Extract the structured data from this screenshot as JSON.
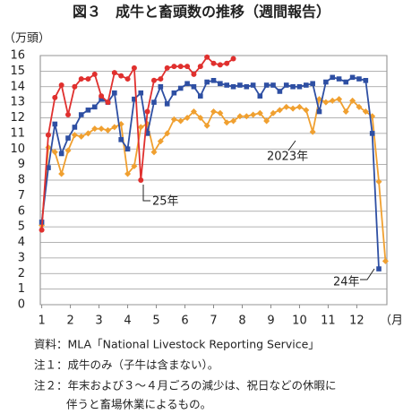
{
  "chart_data": {
    "type": "line",
    "title": "図３　成牛と畜頭数の推移（週間報告）",
    "y_label": "（万頭）",
    "x_label": "（月）",
    "xlim": [
      0.95,
      13.05
    ],
    "xticks": [
      1,
      2,
      3,
      4,
      5,
      6,
      7,
      8,
      9,
      10,
      11,
      12
    ],
    "ylim": [
      0,
      16
    ],
    "yticks": [
      0,
      1,
      2,
      3,
      4,
      5,
      6,
      7,
      8,
      9,
      10,
      11,
      12,
      13,
      14,
      15,
      16
    ],
    "grid": true,
    "x": [
      1.0,
      1.23,
      1.46,
      1.69,
      1.92,
      2.15,
      2.38,
      2.62,
      2.85,
      3.08,
      3.31,
      3.54,
      3.77,
      4.0,
      4.23,
      4.46,
      4.69,
      4.92,
      5.15,
      5.38,
      5.62,
      5.85,
      6.08,
      6.31,
      6.54,
      6.77,
      7.0,
      7.23,
      7.46,
      7.69,
      7.92,
      8.15,
      8.38,
      8.62,
      8.85,
      9.08,
      9.31,
      9.54,
      9.77,
      10.0,
      10.23,
      10.46,
      10.69,
      10.92,
      11.15,
      11.38,
      11.62,
      11.85,
      12.08,
      12.31,
      12.54,
      12.77,
      13.0
    ],
    "series": [
      {
        "name": "2023年",
        "color": "#f0a030",
        "marker": "diamond",
        "values": [
          5.1,
          10.1,
          9.8,
          8.4,
          9.9,
          10.9,
          10.8,
          11.0,
          11.3,
          11.3,
          11.2,
          11.4,
          11.6,
          8.4,
          8.9,
          11.4,
          11.6,
          9.8,
          10.5,
          11.0,
          11.9,
          11.8,
          12.0,
          12.4,
          12.0,
          11.5,
          12.4,
          12.3,
          11.7,
          11.8,
          12.1,
          12.1,
          12.2,
          12.3,
          11.8,
          12.3,
          12.5,
          12.7,
          12.6,
          12.7,
          12.5,
          11.1,
          13.2,
          13.0,
          13.1,
          13.2,
          12.4,
          13.1,
          12.7,
          12.4,
          12.1,
          7.9,
          2.8
        ]
      },
      {
        "name": "24年",
        "color": "#2e4fa3",
        "marker": "square",
        "values": [
          5.3,
          8.8,
          11.6,
          9.7,
          10.7,
          11.4,
          12.2,
          12.5,
          12.7,
          13.2,
          13.0,
          13.6,
          10.6,
          10.0,
          13.2,
          13.6,
          11.0,
          13.0,
          14.0,
          12.9,
          13.6,
          13.9,
          14.2,
          14.0,
          13.4,
          14.3,
          14.4,
          14.2,
          14.1,
          14.0,
          14.1,
          14.0,
          14.1,
          13.4,
          14.1,
          14.1,
          13.7,
          14.1,
          14.0,
          14.0,
          14.1,
          14.2,
          12.4,
          14.3,
          14.6,
          14.5,
          14.3,
          14.6,
          14.5,
          14.4,
          11.0,
          2.3,
          null
        ]
      },
      {
        "name": "25年",
        "color": "#e0302e",
        "marker": "circle",
        "values": [
          4.8,
          10.9,
          13.3,
          14.1,
          12.2,
          14.0,
          14.5,
          14.5,
          14.8,
          13.4,
          13.0,
          14.9,
          14.7,
          14.5,
          15.2,
          8.0,
          12.4,
          14.4,
          14.5,
          15.2,
          15.3,
          15.3,
          15.3,
          14.8,
          15.3,
          15.9,
          15.5,
          15.4,
          15.5,
          15.8,
          null,
          null,
          null,
          null,
          null,
          null,
          null,
          null,
          null,
          null,
          null,
          null,
          null,
          null,
          null,
          null,
          null,
          null,
          null,
          null,
          null,
          null,
          null
        ]
      }
    ],
    "notes": [
      "資料：MLA「National Livestock Reporting Service」",
      "注１：成牛のみ（子牛は含まない）。",
      "注２：年末および３～４月ごろの減少は、祝日などの休暇に",
      "伴うと畜場休業によるもの。"
    ]
  }
}
